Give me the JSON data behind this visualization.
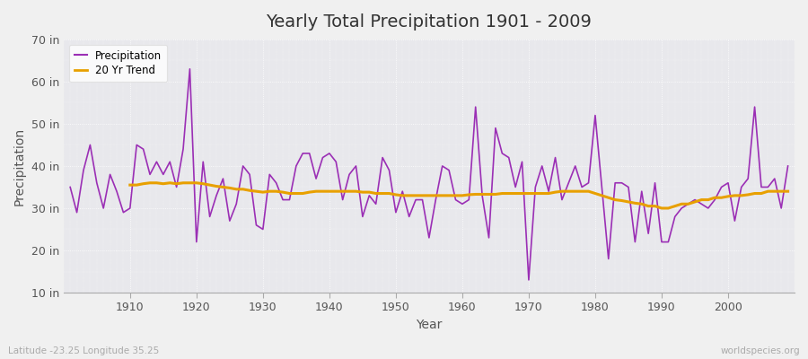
{
  "title": "Yearly Total Precipitation 1901 - 2009",
  "xlabel": "Year",
  "ylabel": "Precipitation",
  "footnote_left": "Latitude -23.25 Longitude 35.25",
  "footnote_right": "worldspecies.org",
  "bg_color": "#f0f0f0",
  "plot_bg_color": "#e8e8ec",
  "precip_color": "#9b2fb5",
  "trend_color": "#e8a000",
  "ylim": [
    10,
    70
  ],
  "yticks": [
    10,
    20,
    30,
    40,
    50,
    60,
    70
  ],
  "ytick_labels": [
    "10 in",
    "20 in",
    "30 in",
    "40 in",
    "50 in",
    "60 in",
    "70 in"
  ],
  "years": [
    1901,
    1902,
    1903,
    1904,
    1905,
    1906,
    1907,
    1908,
    1909,
    1910,
    1911,
    1912,
    1913,
    1914,
    1915,
    1916,
    1917,
    1918,
    1919,
    1920,
    1921,
    1922,
    1923,
    1924,
    1925,
    1926,
    1927,
    1928,
    1929,
    1930,
    1931,
    1932,
    1933,
    1934,
    1935,
    1936,
    1937,
    1938,
    1939,
    1940,
    1941,
    1942,
    1943,
    1944,
    1945,
    1946,
    1947,
    1948,
    1949,
    1950,
    1951,
    1952,
    1953,
    1954,
    1955,
    1956,
    1957,
    1958,
    1959,
    1960,
    1961,
    1962,
    1963,
    1964,
    1965,
    1966,
    1967,
    1968,
    1969,
    1970,
    1971,
    1972,
    1973,
    1974,
    1975,
    1976,
    1977,
    1978,
    1979,
    1980,
    1981,
    1982,
    1983,
    1984,
    1985,
    1986,
    1987,
    1988,
    1989,
    1990,
    1991,
    1992,
    1993,
    1994,
    1995,
    1996,
    1997,
    1998,
    1999,
    2000,
    2001,
    2002,
    2003,
    2004,
    2005,
    2006,
    2007,
    2008,
    2009
  ],
  "precip": [
    35,
    29,
    39,
    45,
    36,
    30,
    38,
    34,
    29,
    30,
    45,
    44,
    38,
    41,
    38,
    41,
    35,
    44,
    63,
    22,
    41,
    28,
    33,
    37,
    27,
    31,
    40,
    38,
    26,
    25,
    38,
    36,
    32,
    32,
    40,
    43,
    43,
    37,
    42,
    43,
    41,
    32,
    38,
    40,
    28,
    33,
    31,
    42,
    39,
    29,
    34,
    28,
    32,
    32,
    23,
    32,
    40,
    39,
    32,
    31,
    32,
    54,
    33,
    23,
    49,
    43,
    42,
    35,
    41,
    13,
    35,
    40,
    34,
    42,
    32,
    36,
    40,
    35,
    36,
    52,
    35,
    18,
    36,
    36,
    35,
    22,
    34,
    24,
    36,
    22,
    22,
    28,
    30,
    31,
    32,
    31,
    30,
    32,
    35,
    36,
    27,
    35,
    37,
    54,
    35,
    35,
    37,
    30,
    40
  ],
  "trend": [
    null,
    null,
    null,
    null,
    null,
    null,
    null,
    null,
    null,
    35.5,
    35.5,
    35.8,
    36,
    36,
    35.8,
    36,
    35.8,
    36,
    36,
    36,
    35.8,
    35.5,
    35.2,
    35,
    34.8,
    34.5,
    34.5,
    34.2,
    34.0,
    33.8,
    34,
    34,
    33.8,
    33.5,
    33.5,
    33.5,
    33.8,
    34,
    34,
    34,
    34,
    34,
    34,
    34,
    33.8,
    33.8,
    33.5,
    33.5,
    33.5,
    33.2,
    33,
    33,
    33,
    33,
    33,
    33,
    33,
    33,
    33,
    33,
    33.2,
    33.3,
    33.3,
    33.3,
    33.3,
    33.5,
    33.5,
    33.5,
    33.5,
    33.5,
    33.5,
    33.5,
    33.5,
    33.8,
    34,
    34,
    34,
    34,
    34,
    33.5,
    33,
    32.5,
    32,
    31.8,
    31.5,
    31.2,
    31,
    30.5,
    30.5,
    30,
    30,
    30.5,
    31,
    31,
    31.5,
    32,
    32,
    32.5,
    32.5,
    32.8,
    33,
    33,
    33.2,
    33.5,
    33.5,
    34,
    34,
    34,
    34
  ]
}
